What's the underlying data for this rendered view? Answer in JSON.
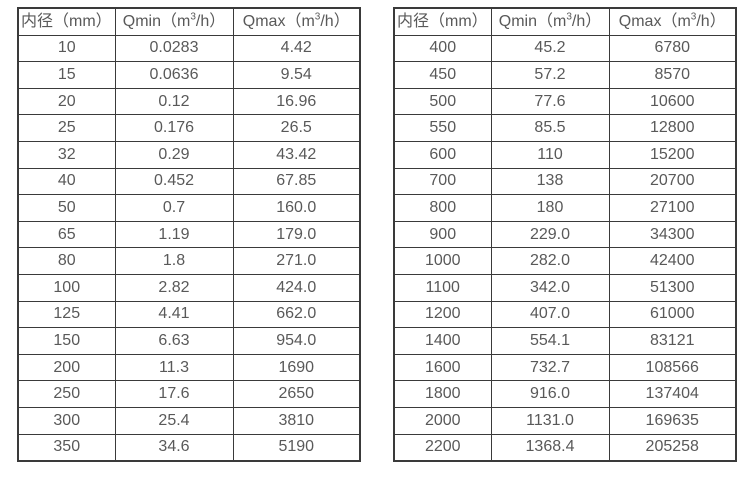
{
  "colors": {
    "text": "#595959",
    "border": "#3a3a3a",
    "background": "#ffffff"
  },
  "chart_data": [
    {
      "type": "table",
      "title": "",
      "columns": [
        "内径（mm）",
        "Qmin（m³/h）",
        "Qmax（m³/h）"
      ],
      "header_parts": [
        {
          "text": "内径（mm）"
        },
        {
          "prefix": "Qmin（m",
          "sup": "3",
          "suffix": "/h）"
        },
        {
          "prefix": "Qmax（m",
          "sup": "3",
          "suffix": "/h）"
        }
      ],
      "rows": [
        [
          "10",
          "0.0283",
          "4.42"
        ],
        [
          "15",
          "0.0636",
          "9.54"
        ],
        [
          "20",
          "0.12",
          "16.96"
        ],
        [
          "25",
          "0.176",
          "26.5"
        ],
        [
          "32",
          "0.29",
          "43.42"
        ],
        [
          "40",
          "0.452",
          "67.85"
        ],
        [
          "50",
          "0.7",
          "160.0"
        ],
        [
          "65",
          "1.19",
          "179.0"
        ],
        [
          "80",
          "1.8",
          "271.0"
        ],
        [
          "100",
          "2.82",
          "424.0"
        ],
        [
          "125",
          "4.41",
          "662.0"
        ],
        [
          "150",
          "6.63",
          "954.0"
        ],
        [
          "200",
          "11.3",
          "1690"
        ],
        [
          "250",
          "17.6",
          "2650"
        ],
        [
          "300",
          "25.4",
          "3810"
        ],
        [
          "350",
          "34.6",
          "5190"
        ]
      ]
    },
    {
      "type": "table",
      "title": "",
      "columns": [
        "内径（mm）",
        "Qmin（m³/h）",
        "Qmax（m³/h）"
      ],
      "header_parts": [
        {
          "text": "内径（mm）"
        },
        {
          "prefix": "Qmin（m",
          "sup": "3",
          "suffix": "/h）"
        },
        {
          "prefix": "Qmax（m",
          "sup": "3",
          "suffix": "/h）"
        }
      ],
      "rows": [
        [
          "400",
          "45.2",
          "6780"
        ],
        [
          "450",
          "57.2",
          "8570"
        ],
        [
          "500",
          "77.6",
          "10600"
        ],
        [
          "550",
          "85.5",
          "12800"
        ],
        [
          "600",
          "110",
          "15200"
        ],
        [
          "700",
          "138",
          "20700"
        ],
        [
          "800",
          "180",
          "27100"
        ],
        [
          "900",
          "229.0",
          "34300"
        ],
        [
          "1000",
          "282.0",
          "42400"
        ],
        [
          "1100",
          "342.0",
          "51300"
        ],
        [
          "1200",
          "407.0",
          "61000"
        ],
        [
          "1400",
          "554.1",
          "83121"
        ],
        [
          "1600",
          "732.7",
          "108566"
        ],
        [
          "1800",
          "916.0",
          "137404"
        ],
        [
          "2000",
          "1131.0",
          "169635"
        ],
        [
          "2200",
          "1368.4",
          "205258"
        ]
      ]
    }
  ]
}
